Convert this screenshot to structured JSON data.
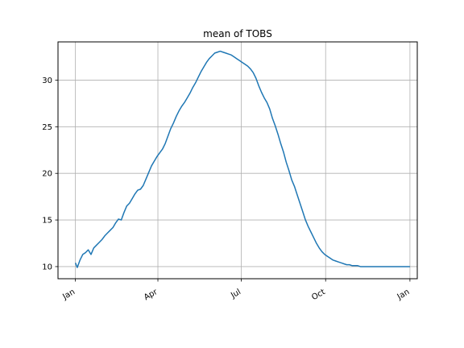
{
  "chart_data": {
    "type": "line",
    "title": "mean of TOBS",
    "xlabel": "",
    "ylabel": "",
    "grid": true,
    "x_ticks": [
      {
        "label": "Jan",
        "day": 0
      },
      {
        "label": "Apr",
        "day": 90
      },
      {
        "label": "Jul",
        "day": 181
      },
      {
        "label": "Oct",
        "day": 273
      },
      {
        "label": "Jan",
        "day": 365
      }
    ],
    "y_ticks": [
      10,
      15,
      20,
      25,
      30
    ],
    "xlim": [
      -19,
      373
    ],
    "ylim": [
      8.7,
      34.1
    ],
    "series": [
      {
        "color": "#1f77b4",
        "points": [
          [
            0,
            10.4
          ],
          [
            2,
            9.9
          ],
          [
            5,
            10.7
          ],
          [
            8,
            11.3
          ],
          [
            11,
            11.5
          ],
          [
            14,
            11.8
          ],
          [
            17,
            11.3
          ],
          [
            20,
            12.0
          ],
          [
            23,
            12.3
          ],
          [
            26,
            12.6
          ],
          [
            29,
            12.9
          ],
          [
            32,
            13.3
          ],
          [
            35,
            13.6
          ],
          [
            38,
            13.9
          ],
          [
            41,
            14.2
          ],
          [
            44,
            14.7
          ],
          [
            47,
            15.1
          ],
          [
            50,
            15.0
          ],
          [
            53,
            15.8
          ],
          [
            56,
            16.5
          ],
          [
            59,
            16.8
          ],
          [
            62,
            17.3
          ],
          [
            65,
            17.8
          ],
          [
            68,
            18.2
          ],
          [
            71,
            18.3
          ],
          [
            74,
            18.7
          ],
          [
            77,
            19.4
          ],
          [
            80,
            20.1
          ],
          [
            83,
            20.8
          ],
          [
            86,
            21.3
          ],
          [
            89,
            21.8
          ],
          [
            92,
            22.2
          ],
          [
            95,
            22.6
          ],
          [
            98,
            23.2
          ],
          [
            101,
            24.0
          ],
          [
            104,
            24.8
          ],
          [
            107,
            25.4
          ],
          [
            110,
            26.1
          ],
          [
            113,
            26.7
          ],
          [
            116,
            27.2
          ],
          [
            119,
            27.6
          ],
          [
            122,
            28.1
          ],
          [
            125,
            28.6
          ],
          [
            128,
            29.2
          ],
          [
            131,
            29.7
          ],
          [
            134,
            30.3
          ],
          [
            137,
            30.9
          ],
          [
            140,
            31.4
          ],
          [
            143,
            31.9
          ],
          [
            146,
            32.3
          ],
          [
            149,
            32.6
          ],
          [
            152,
            32.9
          ],
          [
            155,
            33.0
          ],
          [
            158,
            33.1
          ],
          [
            161,
            33.0
          ],
          [
            164,
            32.9
          ],
          [
            167,
            32.8
          ],
          [
            170,
            32.7
          ],
          [
            173,
            32.5
          ],
          [
            176,
            32.3
          ],
          [
            179,
            32.1
          ],
          [
            182,
            31.9
          ],
          [
            185,
            31.7
          ],
          [
            188,
            31.5
          ],
          [
            191,
            31.2
          ],
          [
            194,
            30.8
          ],
          [
            197,
            30.2
          ],
          [
            200,
            29.4
          ],
          [
            203,
            28.7
          ],
          [
            206,
            28.1
          ],
          [
            209,
            27.6
          ],
          [
            212,
            26.9
          ],
          [
            215,
            25.9
          ],
          [
            218,
            25.1
          ],
          [
            221,
            24.2
          ],
          [
            224,
            23.2
          ],
          [
            227,
            22.3
          ],
          [
            230,
            21.2
          ],
          [
            233,
            20.3
          ],
          [
            236,
            19.3
          ],
          [
            239,
            18.6
          ],
          [
            242,
            17.7
          ],
          [
            245,
            16.8
          ],
          [
            248,
            15.9
          ],
          [
            251,
            15.0
          ],
          [
            254,
            14.3
          ],
          [
            257,
            13.7
          ],
          [
            260,
            13.1
          ],
          [
            263,
            12.5
          ],
          [
            266,
            12.0
          ],
          [
            269,
            11.6
          ],
          [
            272,
            11.3
          ],
          [
            275,
            11.1
          ],
          [
            278,
            10.9
          ],
          [
            281,
            10.7
          ],
          [
            284,
            10.6
          ],
          [
            287,
            10.5
          ],
          [
            290,
            10.4
          ],
          [
            293,
            10.3
          ],
          [
            296,
            10.2
          ],
          [
            299,
            10.2
          ],
          [
            302,
            10.1
          ],
          [
            305,
            10.1
          ],
          [
            308,
            10.1
          ],
          [
            311,
            10.0
          ],
          [
            314,
            10.0
          ],
          [
            317,
            10.0
          ],
          [
            320,
            10.0
          ],
          [
            323,
            10.0
          ],
          [
            326,
            10.0
          ],
          [
            329,
            10.0
          ],
          [
            332,
            10.0
          ],
          [
            335,
            10.0
          ],
          [
            338,
            10.0
          ],
          [
            341,
            10.0
          ],
          [
            344,
            10.0
          ],
          [
            347,
            10.0
          ],
          [
            350,
            10.0
          ],
          [
            353,
            10.0
          ],
          [
            356,
            10.0
          ],
          [
            359,
            10.0
          ],
          [
            362,
            10.0
          ],
          [
            365,
            10.0
          ]
        ]
      }
    ]
  }
}
